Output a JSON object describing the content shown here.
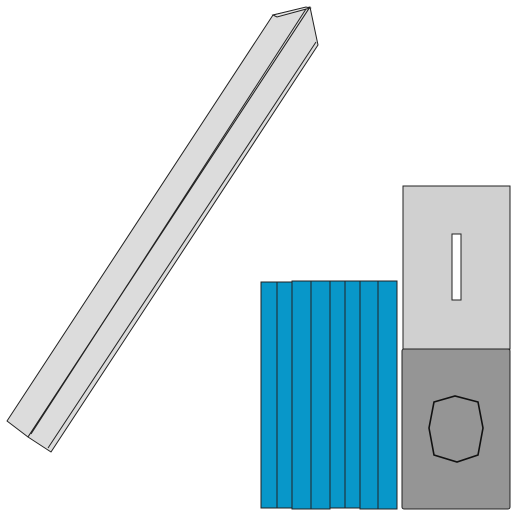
{
  "scene": {
    "background_color": "#ffffff",
    "stroke_color": "#222222",
    "beam": {
      "name": "diagonal-beam",
      "color_face": "#dcdcdc",
      "color_top": "#e6e6e6"
    },
    "panel_stack": {
      "name": "blue-panel-stack",
      "color": "#0897c9",
      "panel_count": 9
    },
    "upper_block": {
      "name": "light-gray-block",
      "color": "#d0d0d0",
      "slot_color": "#ffffff"
    },
    "lower_block": {
      "name": "dark-gray-block",
      "color": "#959595",
      "octagon_color": "#959595"
    }
  }
}
